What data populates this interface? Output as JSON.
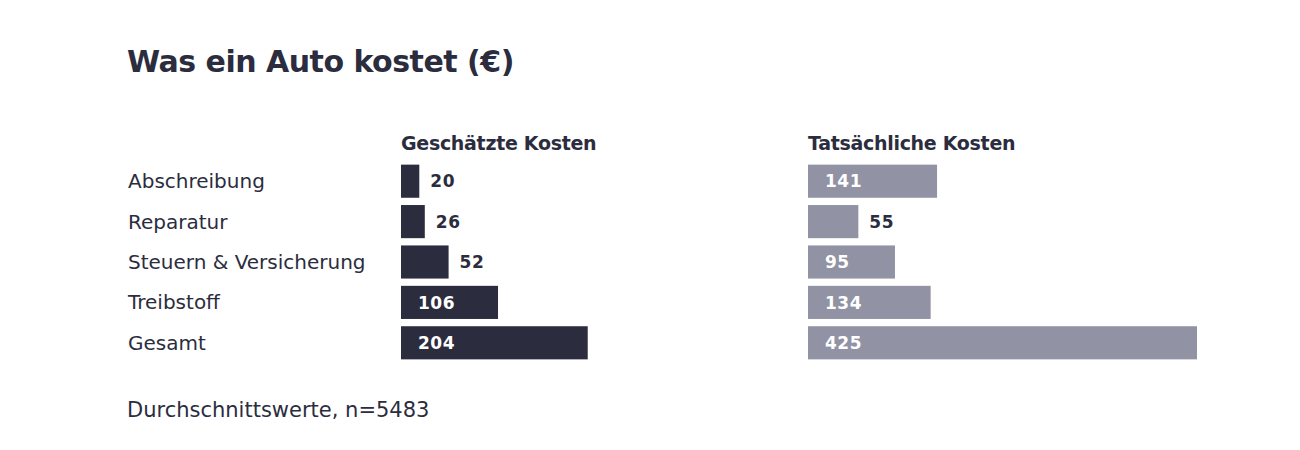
{
  "chart_data": {
    "type": "bar",
    "title": "Was ein Auto kostet (€)",
    "categories": [
      "Abschreibung",
      "Reparatur",
      "Steuern & Versicherung",
      "Treibstoff",
      "Gesamt"
    ],
    "series": [
      {
        "name": "Geschätzte Kosten",
        "color": "#2b2d3e",
        "values": [
          20,
          26,
          52,
          106,
          204
        ]
      },
      {
        "name": "Tatsächliche Kosten",
        "color": "#9192a4",
        "values": [
          141,
          55,
          95,
          134,
          425
        ]
      }
    ],
    "orientation": "horizontal",
    "data_labels": true,
    "tick_labels": "y",
    "xlim": [
      0,
      425
    ],
    "annotations": [
      "Durchschnittswerte, n=5483"
    ]
  }
}
